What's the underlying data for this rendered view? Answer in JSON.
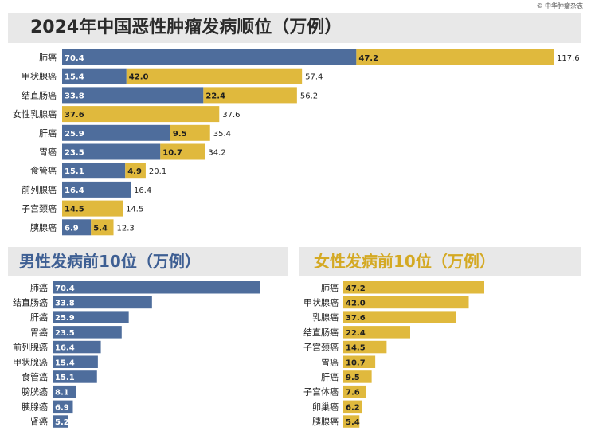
{
  "source": "© 中华肿瘤杂志",
  "colors": {
    "male": "#4e6d9c",
    "female": "#e0b93d",
    "male_label": "#ffffff",
    "female_label": "#1e1e1e"
  },
  "chart_data": [
    {
      "type": "bar",
      "orientation": "horizontal",
      "stacked": true,
      "title": "2024年中国恶性肿瘤发病顺位（万例）",
      "categories": [
        "肺癌",
        "甲状腺癌",
        "结直肠癌",
        "女性乳腺癌",
        "肝癌",
        "胃癌",
        "食管癌",
        "前列腺癌",
        "子宫颈癌",
        "胰腺癌"
      ],
      "series": [
        {
          "values": [
            70.4,
            15.4,
            33.8,
            null,
            25.9,
            23.5,
            15.1,
            16.4,
            null,
            6.9
          ]
        },
        {
          "values": [
            47.2,
            42.0,
            22.4,
            37.6,
            9.5,
            10.7,
            4.9,
            null,
            14.5,
            5.4
          ]
        }
      ],
      "totals": [
        117.6,
        57.4,
        56.2,
        37.6,
        35.4,
        34.2,
        20.1,
        16.4,
        14.5,
        12.3
      ],
      "xlim": [
        0,
        117.6
      ]
    },
    {
      "type": "bar",
      "orientation": "horizontal",
      "title": "男性发病前10位（万例）",
      "categories": [
        "肺癌",
        "结直肠癌",
        "肝癌",
        "胃癌",
        "前列腺癌",
        "甲状腺癌",
        "食管癌",
        "膀胱癌",
        "胰腺癌",
        "肾癌"
      ],
      "values": [
        70.4,
        33.8,
        25.9,
        23.5,
        16.4,
        15.4,
        15.1,
        8.1,
        6.9,
        5.2
      ],
      "xlim": [
        0,
        70.4
      ]
    },
    {
      "type": "bar",
      "orientation": "horizontal",
      "title": "女性发病前10位（万例）",
      "categories": [
        "肺癌",
        "甲状腺癌",
        "乳腺癌",
        "结直肠癌",
        "子宫颈癌",
        "胃癌",
        "肝癌",
        "子宫体癌",
        "卵巢癌",
        "胰腺癌"
      ],
      "values": [
        47.2,
        42.0,
        37.6,
        22.4,
        14.5,
        10.7,
        9.5,
        7.6,
        6.2,
        5.4
      ],
      "xlim": [
        0,
        47.2
      ]
    }
  ]
}
